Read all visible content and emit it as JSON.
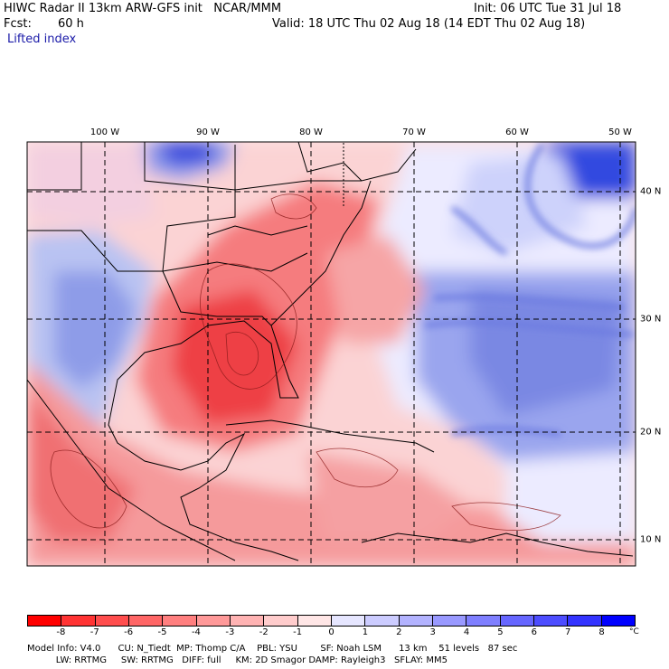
{
  "header": {
    "title": "HIWC Radar II 13km ARW-GFS init   NCAR/MMM",
    "init": "Init: 06 UTC Tue 31 Jul 18",
    "fcst_label": "Fcst:",
    "fcst_value": "60 h",
    "valid": "Valid: 18 UTC Thu 02 Aug 18 (14 EDT Thu 02 Aug 18)",
    "field": "Lifted index"
  },
  "map": {
    "lon_labels": [
      "100 W",
      "90 W",
      "80 W",
      "70 W",
      "60 W",
      "50 W"
    ],
    "lat_labels": [
      "40 N",
      "30 N",
      "20 N",
      "10 N"
    ]
  },
  "colorbar": {
    "unit": "°C",
    "ticks": [
      "-8",
      "-7",
      "-6",
      "-5",
      "-4",
      "-3",
      "-2",
      "-1",
      "0",
      "1",
      "2",
      "3",
      "4",
      "5",
      "6",
      "7",
      "8"
    ],
    "colors": [
      "#ff0000",
      "#ff3333",
      "#ff4d4d",
      "#ff6666",
      "#ff7f7f",
      "#ff9999",
      "#ffb3b3",
      "#ffcccc",
      "#ffe6e6",
      "#e6e6ff",
      "#ccccff",
      "#b3b3ff",
      "#9999ff",
      "#7f7fff",
      "#6666ff",
      "#4d4dff",
      "#3333ff",
      "#0000ff"
    ],
    "bg_colors": {
      "land": "#ffffff",
      "border": "#000000"
    }
  },
  "footer": {
    "line1": "Model Info: V4.0      CU: N_Tiedt  MP: Thomp C/A    PBL: YSU        SF: Noah LSM      13 km    51 levels   87 sec",
    "line2": "          LW: RRTMG     SW: RRTMG   DIFF: full     KM: 2D Smagor DAMP: Rayleigh3   SFLAY: MM5"
  }
}
